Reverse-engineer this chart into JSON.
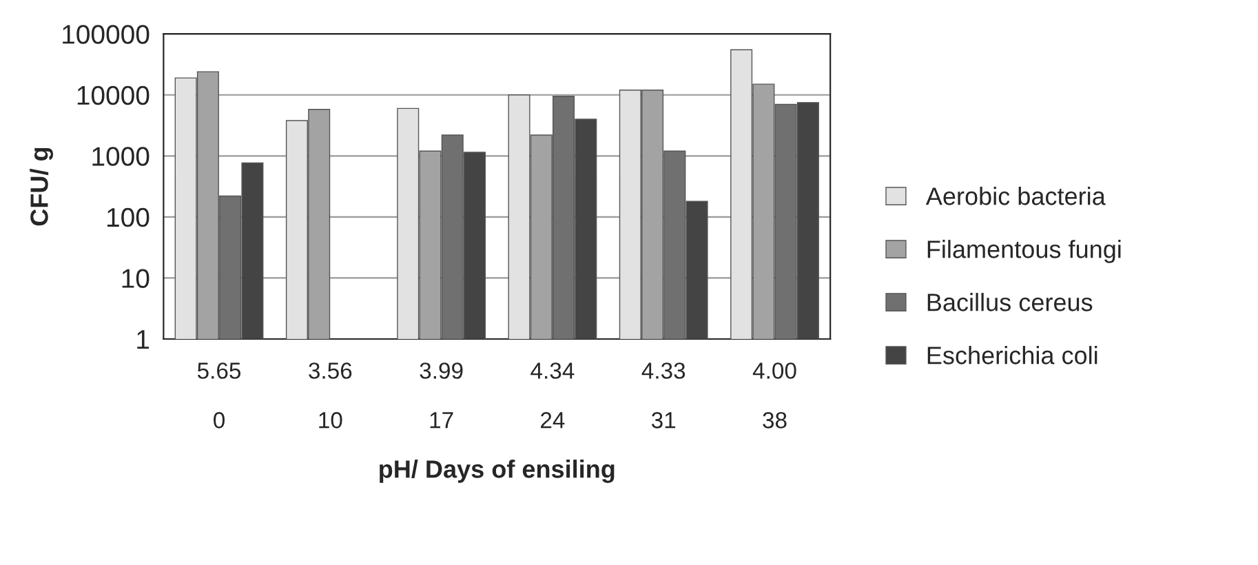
{
  "chart_data": {
    "type": "bar",
    "xlabel": "pH/ Days of ensiling",
    "ylabel": "CFU/ g",
    "categories": [
      "5.65\n\n0",
      "3.56\n\n10",
      "3.99\n\n17",
      "4.34\n\n24",
      "4.33\n\n31",
      "4.00\n\n38"
    ],
    "series": [
      {
        "name": "Aerobic bacteria",
        "color": "#e2e2e2",
        "values": [
          19000,
          3800,
          6000,
          10000,
          12000,
          55000
        ]
      },
      {
        "name": "Filamentous fungi",
        "color": "#a3a3a3",
        "values": [
          24000,
          5800,
          1200,
          2200,
          12000,
          15000
        ]
      },
      {
        "name": "Bacillus cereus",
        "color": "#707070",
        "values": [
          220,
          null,
          2200,
          9500,
          1200,
          7000
        ]
      },
      {
        "name": "Escherichia coli",
        "color": "#444444",
        "values": [
          770,
          null,
          1150,
          4000,
          180,
          7500
        ]
      }
    ],
    "log": true,
    "ylim": [
      1,
      100000
    ],
    "yticks": [
      1,
      10,
      100,
      1000,
      10000,
      100000
    ],
    "grid": "y",
    "legend": "right"
  }
}
